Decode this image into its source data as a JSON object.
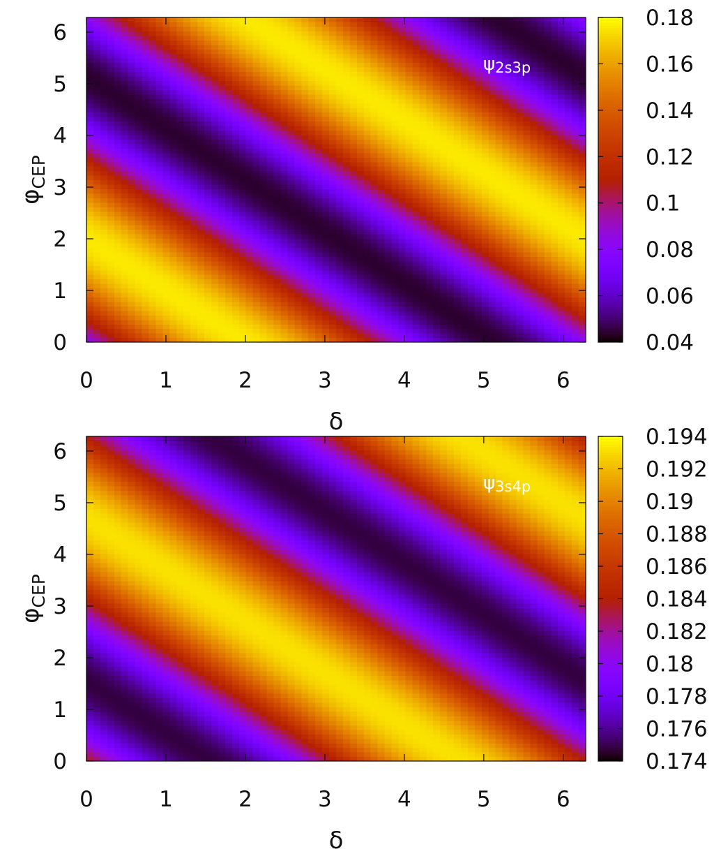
{
  "chart_data": [
    {
      "type": "heatmap",
      "annotation": "ψ",
      "annotation_sub": "2s3p",
      "xlabel": "δ",
      "ylabel": "φ",
      "ylabel_sub": "CEP",
      "xlim": [
        0,
        6.283
      ],
      "ylim": [
        0,
        6.283
      ],
      "x_ticks": [
        0,
        1,
        2,
        3,
        4,
        5,
        6
      ],
      "y_ticks": [
        0,
        1,
        2,
        3,
        4,
        5,
        6
      ],
      "colorbar_range": [
        0.04,
        0.18
      ],
      "colorbar_ticks": [
        "0.18",
        "0.16",
        "0.14",
        "0.12",
        "0.1",
        "0.08",
        "0.06",
        "0.04"
      ],
      "model": {
        "mean": 0.11,
        "amplitude": 0.066,
        "phase": 2.0
      },
      "grid": false,
      "colormap": "gnuplot"
    },
    {
      "type": "heatmap",
      "annotation": "ψ",
      "annotation_sub": "3s4p",
      "xlabel": "δ",
      "ylabel": "φ",
      "ylabel_sub": "CEP",
      "xlim": [
        0,
        6.283
      ],
      "ylim": [
        0,
        6.283
      ],
      "x_ticks": [
        0,
        1,
        2,
        3,
        4,
        5,
        6
      ],
      "y_ticks": [
        0,
        1,
        2,
        3,
        4,
        5,
        6
      ],
      "colorbar_range": [
        0.174,
        0.194
      ],
      "colorbar_ticks": [
        "0.194",
        "0.192",
        "0.19",
        "0.188",
        "0.186",
        "0.184",
        "0.182",
        "0.18",
        "0.178",
        "0.176",
        "0.174"
      ],
      "model": {
        "mean": 0.184,
        "amplitude": 0.0092,
        "phase": 4.7
      },
      "grid": false,
      "colormap": "gnuplot"
    }
  ]
}
